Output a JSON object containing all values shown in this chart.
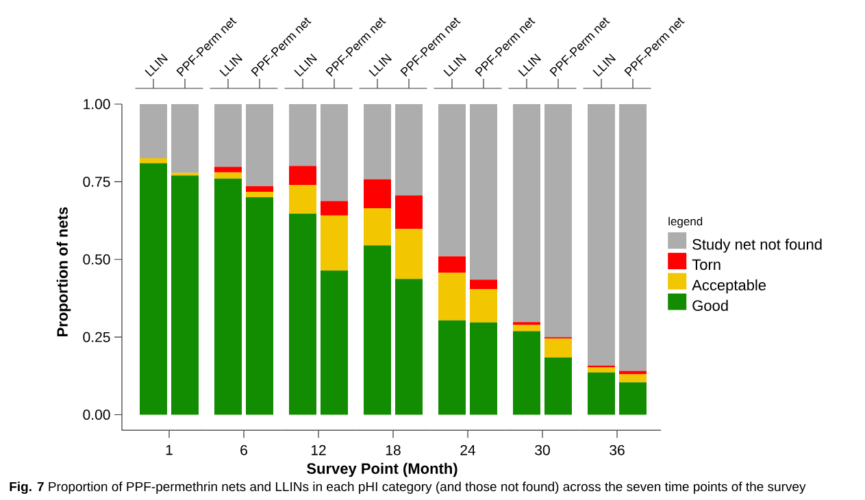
{
  "chart_data": [
    {
      "type": "bar",
      "stacked": true,
      "categories": [
        "LLIN",
        "PPF-Perm net"
      ],
      "xlabel": "1",
      "ylabel": "Proportion of nets",
      "ylim": [
        -0.05,
        1
      ],
      "yticks": [
        {
          "value": 0,
          "label": "0.00"
        },
        {
          "value": 0.25,
          "label": "0.25"
        },
        {
          "value": 0.5,
          "label": "0.50"
        },
        {
          "value": 0.75,
          "label": "0.75"
        },
        {
          "value": 1,
          "label": "1.00"
        }
      ],
      "series": [
        {
          "color": "#128c00",
          "values": [
            0.81,
            0.77
          ]
        },
        {
          "color": "#f2c600",
          "values": [
            0.016,
            0.009
          ]
        },
        {
          "color": "#ff0000",
          "values": [
            0,
            0
          ]
        },
        {
          "color": "#adadad",
          "values": [
            0.174,
            0.221
          ]
        }
      ],
      "annotations": [
        "Survey Point (Month)",
        "**Fig. 7** Proportion of PPF-permethrin nets and LLINs in each pHI category (and those not found) across the seven time points of the survey"
      ]
    },
    {
      "type": "bar",
      "stacked": true,
      "categories": [
        "LLIN",
        "PPF-Perm net"
      ],
      "xlabel": "6",
      "ylim": [
        -0.05,
        1
      ],
      "tick_labels": "x",
      "series": [
        {
          "color": "#128c00",
          "values": [
            0.76,
            0.7
          ]
        },
        {
          "color": "#f2c600",
          "values": [
            0.02,
            0.018
          ]
        },
        {
          "color": "#ff0000",
          "values": [
            0.018,
            0.018
          ]
        },
        {
          "color": "#adadad",
          "values": [
            0.202,
            0.264
          ]
        }
      ]
    },
    {
      "type": "bar",
      "stacked": true,
      "categories": [
        "LLIN",
        "PPF-Perm net"
      ],
      "xlabel": "12",
      "ylim": [
        -0.05,
        1
      ],
      "tick_labels": "x",
      "series": [
        {
          "color": "#128c00",
          "values": [
            0.647,
            0.464
          ]
        },
        {
          "color": "#f2c600",
          "values": [
            0.093,
            0.177
          ]
        },
        {
          "color": "#ff0000",
          "values": [
            0.061,
            0.047
          ]
        },
        {
          "color": "#adadad",
          "values": [
            0.199,
            0.312
          ]
        }
      ]
    },
    {
      "type": "bar",
      "stacked": true,
      "categories": [
        "LLIN",
        "PPF-Perm net"
      ],
      "xlabel": "18",
      "ylim": [
        -0.05,
        1
      ],
      "tick_labels": "x",
      "series": [
        {
          "color": "#128c00",
          "values": [
            0.545,
            0.437
          ]
        },
        {
          "color": "#f2c600",
          "values": [
            0.12,
            0.161
          ]
        },
        {
          "color": "#ff0000",
          "values": [
            0.093,
            0.108
          ]
        },
        {
          "color": "#adadad",
          "values": [
            0.242,
            0.294
          ]
        }
      ]
    },
    {
      "type": "bar",
      "stacked": true,
      "categories": [
        "LLIN",
        "PPF-Perm net"
      ],
      "xlabel": "24",
      "ylim": [
        -0.05,
        1
      ],
      "tick_labels": "x",
      "series": [
        {
          "color": "#128c00",
          "values": [
            0.304,
            0.297
          ]
        },
        {
          "color": "#f2c600",
          "values": [
            0.153,
            0.107
          ]
        },
        {
          "color": "#ff0000",
          "values": [
            0.053,
            0.031
          ]
        },
        {
          "color": "#adadad",
          "values": [
            0.49,
            0.565
          ]
        }
      ]
    },
    {
      "type": "bar",
      "stacked": true,
      "categories": [
        "LLIN",
        "PPF-Perm net"
      ],
      "xlabel": "30",
      "ylim": [
        -0.05,
        1
      ],
      "tick_labels": "x",
      "series": [
        {
          "color": "#128c00",
          "values": [
            0.269,
            0.184
          ]
        },
        {
          "color": "#f2c600",
          "values": [
            0.02,
            0.061
          ]
        },
        {
          "color": "#ff0000",
          "values": [
            0.009,
            0.005
          ]
        },
        {
          "color": "#adadad",
          "values": [
            0.702,
            0.75
          ]
        }
      ]
    },
    {
      "type": "bar",
      "stacked": true,
      "categories": [
        "LLIN",
        "PPF-Perm net"
      ],
      "xlabel": "36",
      "ylim": [
        -0.05,
        1
      ],
      "tick_labels": "x",
      "legend": "right",
      "legend_title": "legend",
      "series": [
        {
          "name": "Good",
          "color": "#128c00",
          "values": [
            0.136,
            0.104
          ]
        },
        {
          "name": "Acceptable",
          "color": "#f2c600",
          "values": [
            0.016,
            0.026
          ]
        },
        {
          "name": "Torn",
          "color": "#ff0000",
          "values": [
            0.006,
            0.011
          ]
        },
        {
          "name": "Study net not found",
          "color": "#adadad",
          "values": [
            0.842,
            0.859
          ]
        }
      ]
    }
  ]
}
